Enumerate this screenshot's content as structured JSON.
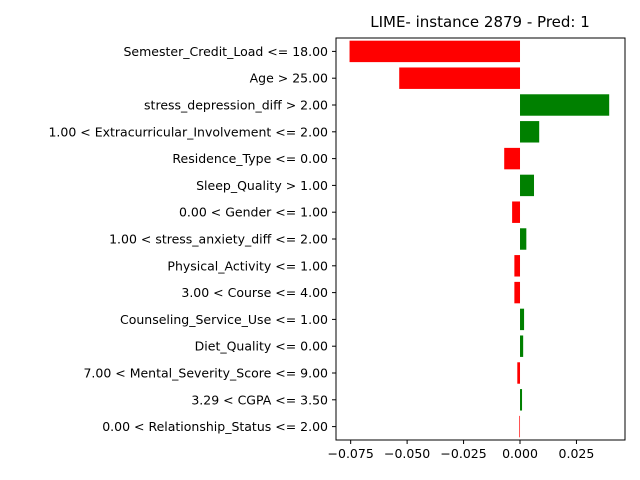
{
  "chart_data": {
    "type": "bar",
    "orientation": "horizontal",
    "title": "LIME- instance 2879 - Pred: 1",
    "xlabel": "",
    "ylabel": "",
    "xlim": [
      -0.0815,
      0.0465
    ],
    "xticks": [
      -0.075,
      -0.05,
      -0.025,
      0.0,
      0.025
    ],
    "xtick_labels": [
      "−0.075",
      "−0.050",
      "−0.025",
      "0.000",
      "0.025"
    ],
    "grid": false,
    "categories": [
      "Semester_Credit_Load <= 18.00",
      "Age > 25.00",
      "stress_depression_diff > 2.00",
      "1.00 < Extracurricular_Involvement <= 2.00",
      "Residence_Type <= 0.00",
      "Sleep_Quality > 1.00",
      "0.00 < Gender <= 1.00",
      "1.00 < stress_anxiety_diff <= 2.00",
      "Physical_Activity <= 1.00",
      "3.00 < Course <= 4.00",
      "Counseling_Service_Use <= 1.00",
      "Diet_Quality <= 0.00",
      "7.00 < Mental_Severity_Score <= 9.00",
      "3.29 < CGPA <= 3.50",
      "0.00 < Relationship_Status <= 2.00"
    ],
    "values": [
      -0.0755,
      -0.0535,
      0.0395,
      0.0085,
      -0.007,
      0.0062,
      -0.0035,
      0.0028,
      -0.0025,
      -0.0025,
      0.0018,
      0.0014,
      -0.0012,
      0.0009,
      -0.0003
    ],
    "positive_color": "#008000",
    "negative_color": "#ff0000"
  }
}
